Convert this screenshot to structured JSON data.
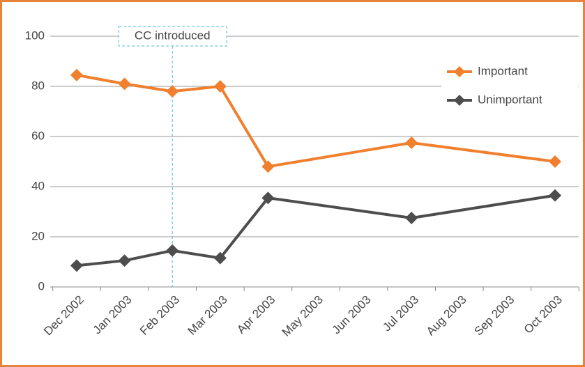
{
  "chart_data": {
    "type": "line",
    "xticks": [
      "Dec 2002",
      "Jan 2003",
      "Feb 2003",
      "Mar 2003",
      "Apr 2003",
      "May 2003",
      "Jun 2003",
      "Jul 2003",
      "Aug 2003",
      "Sep 2003",
      "Oct 2003"
    ],
    "x": [
      "Dec 2002",
      "Jan 2003",
      "Feb 2003",
      "Mar 2003",
      "Apr 2003",
      "Jul 2003",
      "Oct 2003"
    ],
    "series": [
      {
        "name": "Important",
        "color": "#f07f2e",
        "values": [
          84.5,
          81,
          78,
          80,
          48,
          57.5,
          50
        ]
      },
      {
        "name": "Unimportant",
        "color": "#4d4d4d",
        "values": [
          8.5,
          10.5,
          14.5,
          11.5,
          35.5,
          27.5,
          36.5
        ]
      }
    ],
    "annotation": {
      "text": "CC introduced",
      "x": "Feb 2003"
    },
    "ylim": [
      0,
      100
    ],
    "yticks": [
      0,
      20,
      40,
      60,
      80,
      100
    ],
    "grid": true,
    "legend": "top-right"
  }
}
